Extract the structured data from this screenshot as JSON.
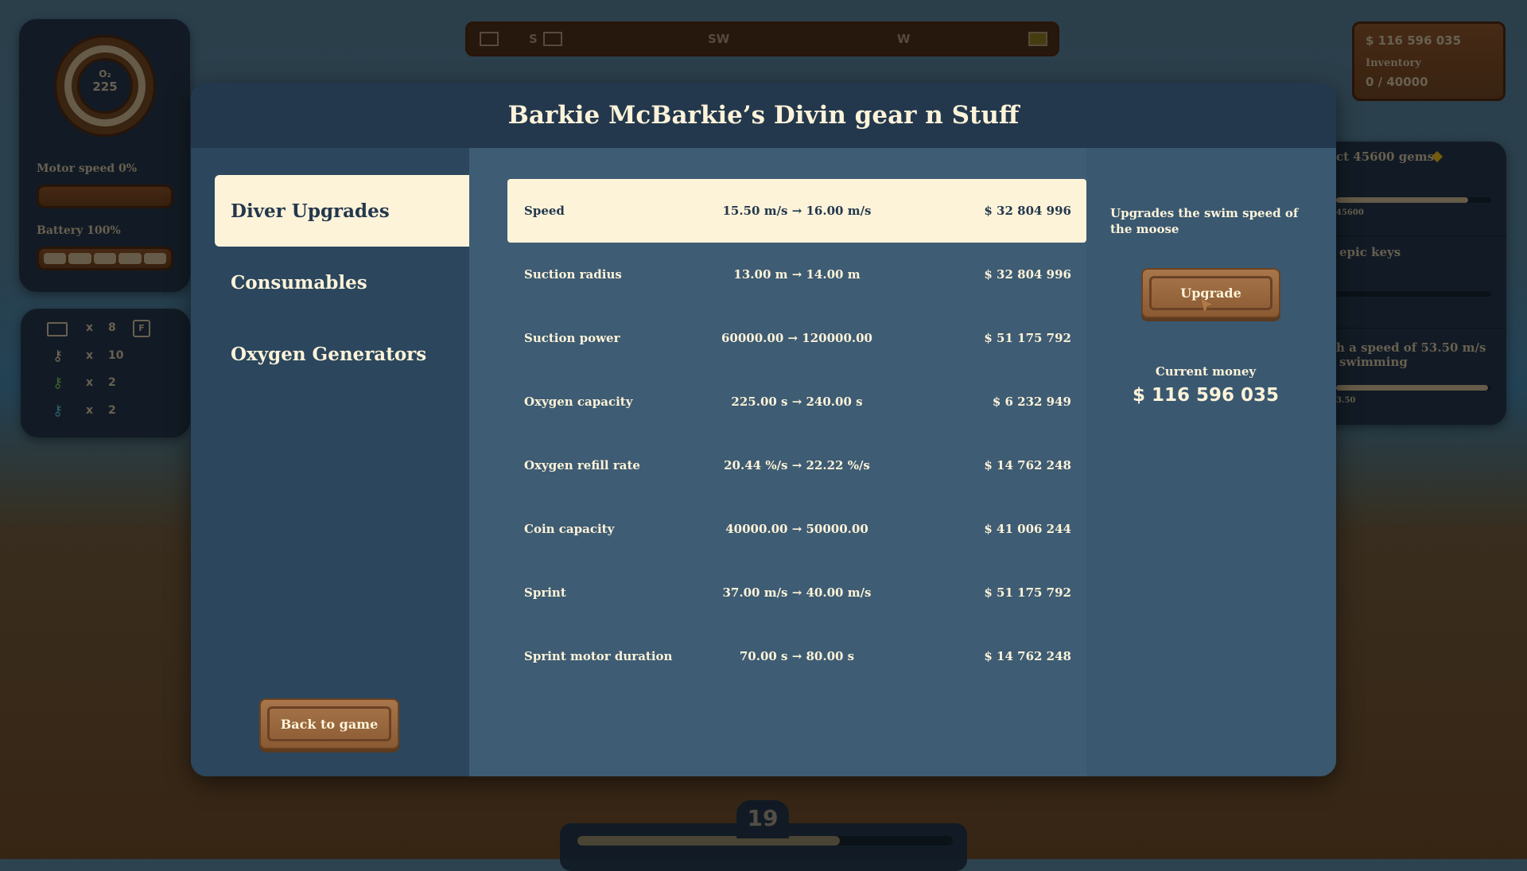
{
  "hud": {
    "o2_label": "O₂",
    "o2_value": "225",
    "motor_speed": "Motor speed 0%",
    "battery": "Battery 100%",
    "battery_fraction": 1.0,
    "motor_fraction": 0.0,
    "inventory": [
      {
        "icon": "folder-icon",
        "x": "x",
        "count": "8",
        "key": "F"
      },
      {
        "icon": "key-icon",
        "color": "#7a7060",
        "x": "x",
        "count": "10"
      },
      {
        "icon": "key-icon",
        "color": "#3e6a2e",
        "x": "x",
        "count": "2"
      },
      {
        "icon": "key-icon",
        "color": "#2f6470",
        "x": "x",
        "count": "2"
      }
    ]
  },
  "compass": {
    "labels": [
      "S",
      "SW",
      "W"
    ]
  },
  "wallet": {
    "money": "$ 116 596 035",
    "inventory_label": "Inventory",
    "inventory_value": "0 / 40000"
  },
  "quests": [
    {
      "text": "ct 45600 gems",
      "sub": "45600",
      "progress": 0.85
    },
    {
      "text": "epic keys",
      "progress": 0
    },
    {
      "text": "h a speed of 53.50 m/s",
      "text2": "swimming",
      "sub": "3.50",
      "progress": 0.98
    }
  ],
  "level": {
    "value": "19",
    "progress": 0.7
  },
  "shop": {
    "title": "Barkie McBarkie’s Divin gear n Stuff",
    "tabs": [
      {
        "label": "Diver Upgrades",
        "active": true
      },
      {
        "label": "Consumables"
      },
      {
        "label": "Oxygen Generators"
      }
    ],
    "back_label": "Back to game",
    "upgrades": [
      {
        "name": "Speed",
        "value": "15.50 m/s → 16.00 m/s",
        "price": "$ 32 804 996"
      },
      {
        "name": "Suction radius",
        "value": "13.00 m → 14.00 m",
        "price": "$ 32 804 996"
      },
      {
        "name": "Suction power",
        "value": "60000.00 → 120000.00",
        "price": "$ 51 175 792"
      },
      {
        "name": "Oxygen capacity",
        "value": "225.00 s → 240.00 s",
        "price": "$ 6 232 949"
      },
      {
        "name": "Oxygen refill rate",
        "value": "20.44 %/s → 22.22 %/s",
        "price": "$ 14 762 248"
      },
      {
        "name": "Coin capacity",
        "value": "40000.00 → 50000.00",
        "price": "$ 41 006 244"
      },
      {
        "name": "Sprint",
        "value": "37.00 m/s → 40.00 m/s",
        "price": "$ 51 175 792"
      },
      {
        "name": "Sprint motor duration",
        "value": "70.00 s → 80.00 s",
        "price": "$ 14 762 248"
      }
    ],
    "description": "Upgrades the swim speed of the moose",
    "upgrade_label": "Upgrade",
    "current_money_label": "Current money",
    "current_money": "$ 116 596 035"
  },
  "colors": {
    "cream": "#fdf3d9",
    "header": "#24384d",
    "wood": "#9a6a40"
  }
}
